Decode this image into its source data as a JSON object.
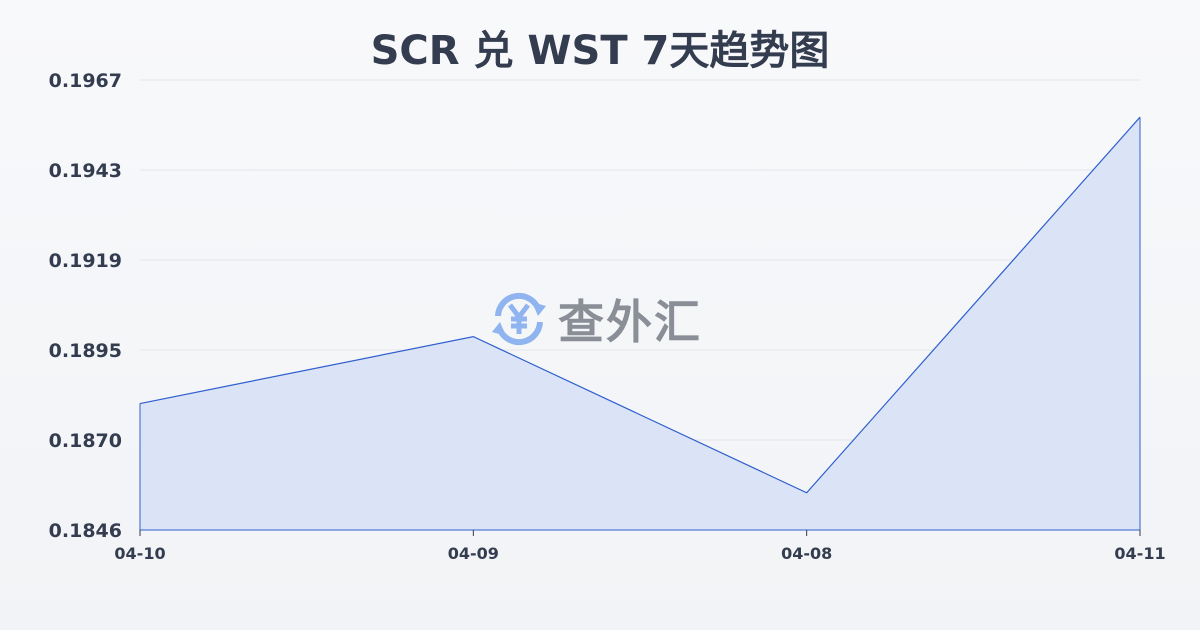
{
  "chart_data": {
    "type": "area",
    "title": "SCR 兑 WST 7天趋势图",
    "categories": [
      "04-10",
      "04-09",
      "04-08",
      "04-11"
    ],
    "values": [
      0.188,
      0.1898,
      0.1856,
      0.1957
    ],
    "yticks": [
      "0.1967",
      "0.1943",
      "0.1919",
      "0.1895",
      "0.1870",
      "0.1846"
    ],
    "ylim": [
      0.1846,
      0.1967
    ],
    "grid": true,
    "line_color": "#2f5fcf",
    "fill_color": "#d9e3f6"
  },
  "watermark": {
    "text": "查外汇",
    "icon": "yen-exchange-icon",
    "color": "#8fb4f0"
  }
}
